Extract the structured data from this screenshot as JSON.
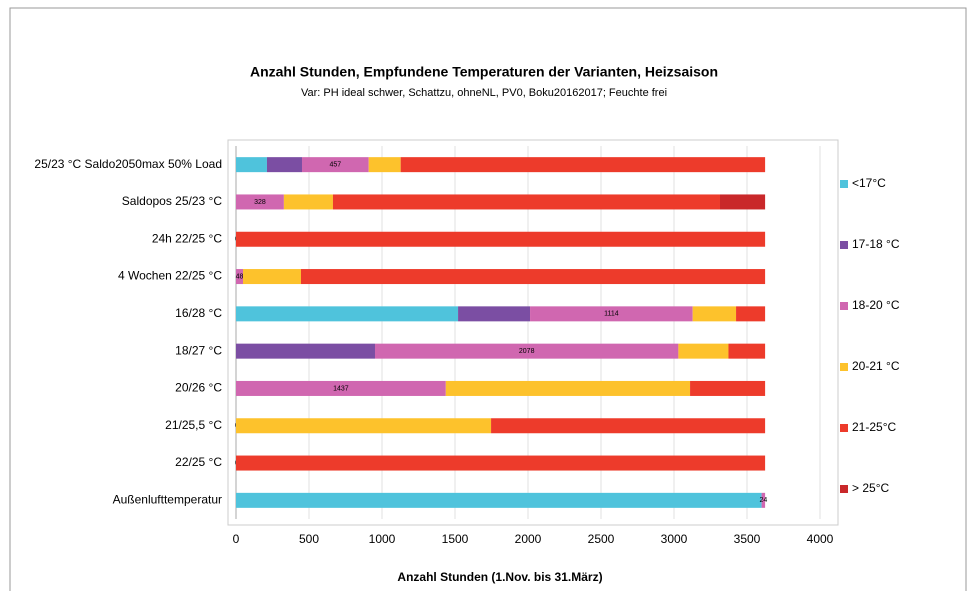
{
  "chart_data": {
    "type": "stacked-barh",
    "title": "Anzahl Stunden, Empfundene Temperaturen der Varianten, Heizsaison",
    "subtitle": "Var: PH ideal schwer, Schattzu, ohneNL, PV0, Boku20162017; Feuchte frei",
    "x_label": "Anzahl Stunden (1.Nov. bis 31.März)",
    "categories": [
      "25/23 °C Saldo2050max 50% Load",
      "Saldopos 25/23 °C",
      "24h 22/25 °C",
      "4 Wochen  22/25 °C",
      "16/28 °C",
      "18/27 °C",
      "20/26 °C",
      "21/25,5 °C",
      "22/25 °C",
      "Außenlufttemperatur"
    ],
    "series": [
      {
        "name": "<17°C",
        "color": "#4fc3dc",
        "values": [
          212,
          0,
          0,
          0,
          1521,
          0,
          0,
          0,
          0,
          3600
        ]
      },
      {
        "name": "17-18 °C",
        "color": "#7b4ea3",
        "values": [
          240,
          0,
          0,
          0,
          493,
          952,
          0,
          0,
          0,
          0
        ]
      },
      {
        "name": "18-20 °C",
        "color": "#d067b0",
        "values": [
          457,
          328,
          0,
          48,
          1114,
          2078,
          1437,
          0,
          0,
          24
        ],
        "show_labels": true
      },
      {
        "name": "20-21 °C",
        "color": "#fdc22c",
        "values": [
          219,
          336,
          0,
          397,
          297,
          343,
          1673,
          1747,
          0,
          0
        ]
      },
      {
        "name": "21-25°C",
        "color": "#ed3b2b",
        "values": [
          2496,
          2651,
          3624,
          3179,
          199,
          251,
          514,
          1877,
          3624,
          0
        ]
      },
      {
        "name": "> 25°C",
        "color": "#c9282a",
        "values": [
          0,
          309,
          0,
          0,
          0,
          0,
          0,
          0,
          0,
          0
        ]
      }
    ],
    "xlim": [
      0,
      4000
    ],
    "xticks": [
      0,
      500,
      1000,
      1500,
      2000,
      2500,
      3000,
      3500,
      4000
    ],
    "grid": true,
    "legend": "right"
  }
}
